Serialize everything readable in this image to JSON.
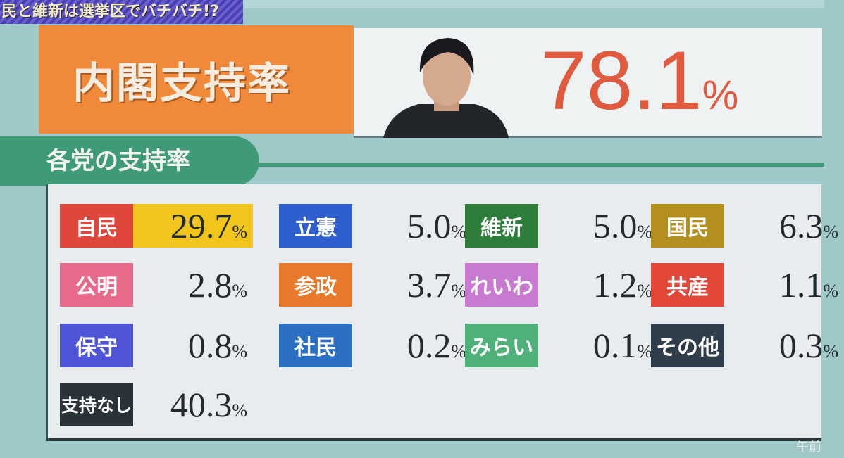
{
  "banner": "民と維新は選挙区でバチバチ!?",
  "cabinet": {
    "label": "内閣支持率",
    "value": "78.1",
    "unit": "%"
  },
  "section_title": "各党の支持率",
  "time_fragment": "午前",
  "chart_data": {
    "type": "table",
    "unit": "%",
    "rows": [
      {
        "party": "自民",
        "value": "29.7",
        "color": "#e0473c",
        "highlight": "#f2c51c"
      },
      {
        "party": "立憲",
        "value": "5.0",
        "color": "#2f5fcf"
      },
      {
        "party": "維新",
        "value": "5.0",
        "color": "#2e7d3a"
      },
      {
        "party": "国民",
        "value": "6.3",
        "color": "#b38f1f"
      },
      {
        "party": "公明",
        "value": "2.8",
        "color": "#e86a8a"
      },
      {
        "party": "参政",
        "value": "3.7",
        "color": "#e8782a"
      },
      {
        "party": "れいわ",
        "value": "1.2",
        "color": "#c77ad0"
      },
      {
        "party": "共産",
        "value": "1.1",
        "color": "#e2483a"
      },
      {
        "party": "保守",
        "value": "0.8",
        "color": "#5055d8"
      },
      {
        "party": "社民",
        "value": "0.2",
        "color": "#2a6fc4"
      },
      {
        "party": "みらい",
        "value": "0.1",
        "color": "#4fb07a"
      },
      {
        "party": "その他",
        "value": "0.3",
        "color": "#2f3c4a"
      },
      {
        "party": "支持なし",
        "value": "40.3",
        "color": "#2a3338"
      }
    ]
  }
}
